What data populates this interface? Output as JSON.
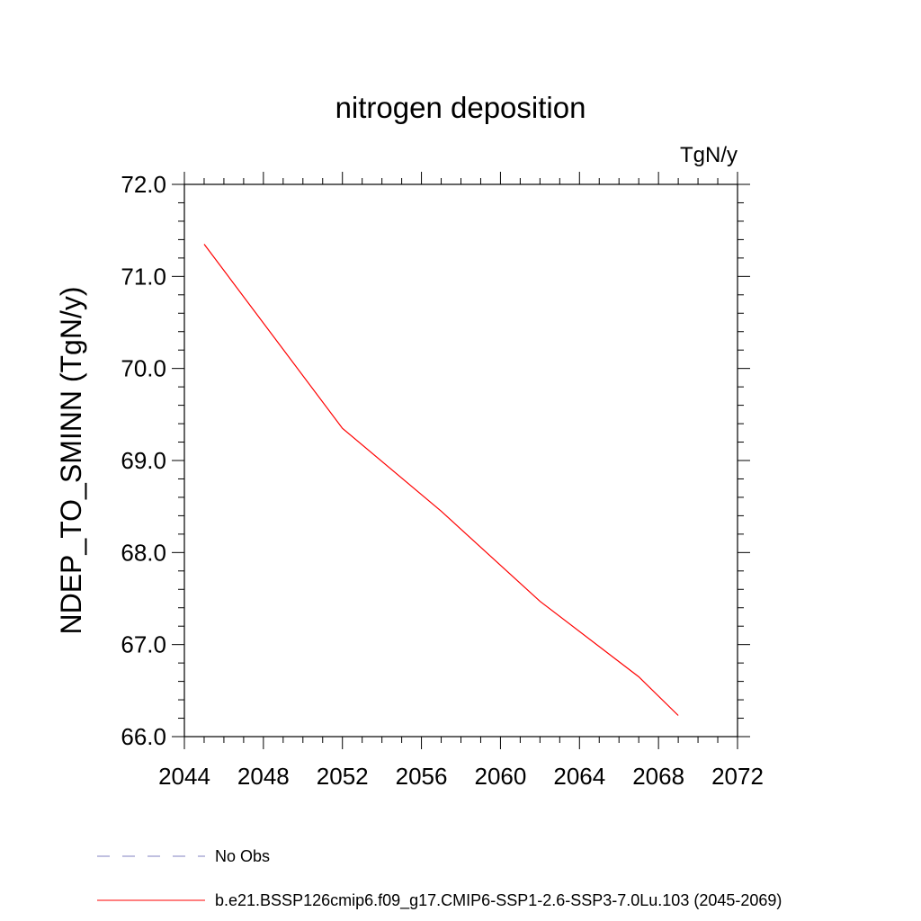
{
  "chart_data": {
    "type": "line",
    "title": "nitrogen deposition",
    "units_label": "TgN/y",
    "ylabel": "NDEP_TO_SMINN  (TgN/y)",
    "xlabel": "",
    "xlim": [
      2044,
      2072
    ],
    "ylim": [
      66.0,
      72.0
    ],
    "xticks": [
      2044,
      2048,
      2052,
      2056,
      2060,
      2064,
      2068,
      2072
    ],
    "xtick_labels": [
      "2044",
      "2048",
      "2052",
      "2056",
      "2060",
      "2064",
      "2068",
      "2072"
    ],
    "yticks": [
      66.0,
      67.0,
      68.0,
      69.0,
      70.0,
      71.0,
      72.0
    ],
    "ytick_labels": [
      "66.0",
      "67.0",
      "68.0",
      "69.0",
      "70.0",
      "71.0",
      "72.0"
    ],
    "grid": false,
    "legend_position": "bottom",
    "series": [
      {
        "name": "b.e21.BSSP126cmip6.f09_g17.CMIP6-SSP1-2.6-SSP3-7.0Lu.103 (2045-2069)",
        "color": "#ff0000",
        "style": "solid",
        "x": [
          2045,
          2052,
          2057,
          2062,
          2067,
          2069
        ],
        "y": [
          71.35,
          69.35,
          68.45,
          67.47,
          66.65,
          66.23
        ]
      }
    ],
    "legend": [
      {
        "label": "No Obs",
        "color": "#8080c0",
        "style": "dashed"
      },
      {
        "label": "b.e21.BSSP126cmip6.f09_g17.CMIP6-SSP1-2.6-SSP3-7.0Lu.103 (2045-2069)",
        "color": "#ff0000",
        "style": "solid"
      }
    ]
  }
}
